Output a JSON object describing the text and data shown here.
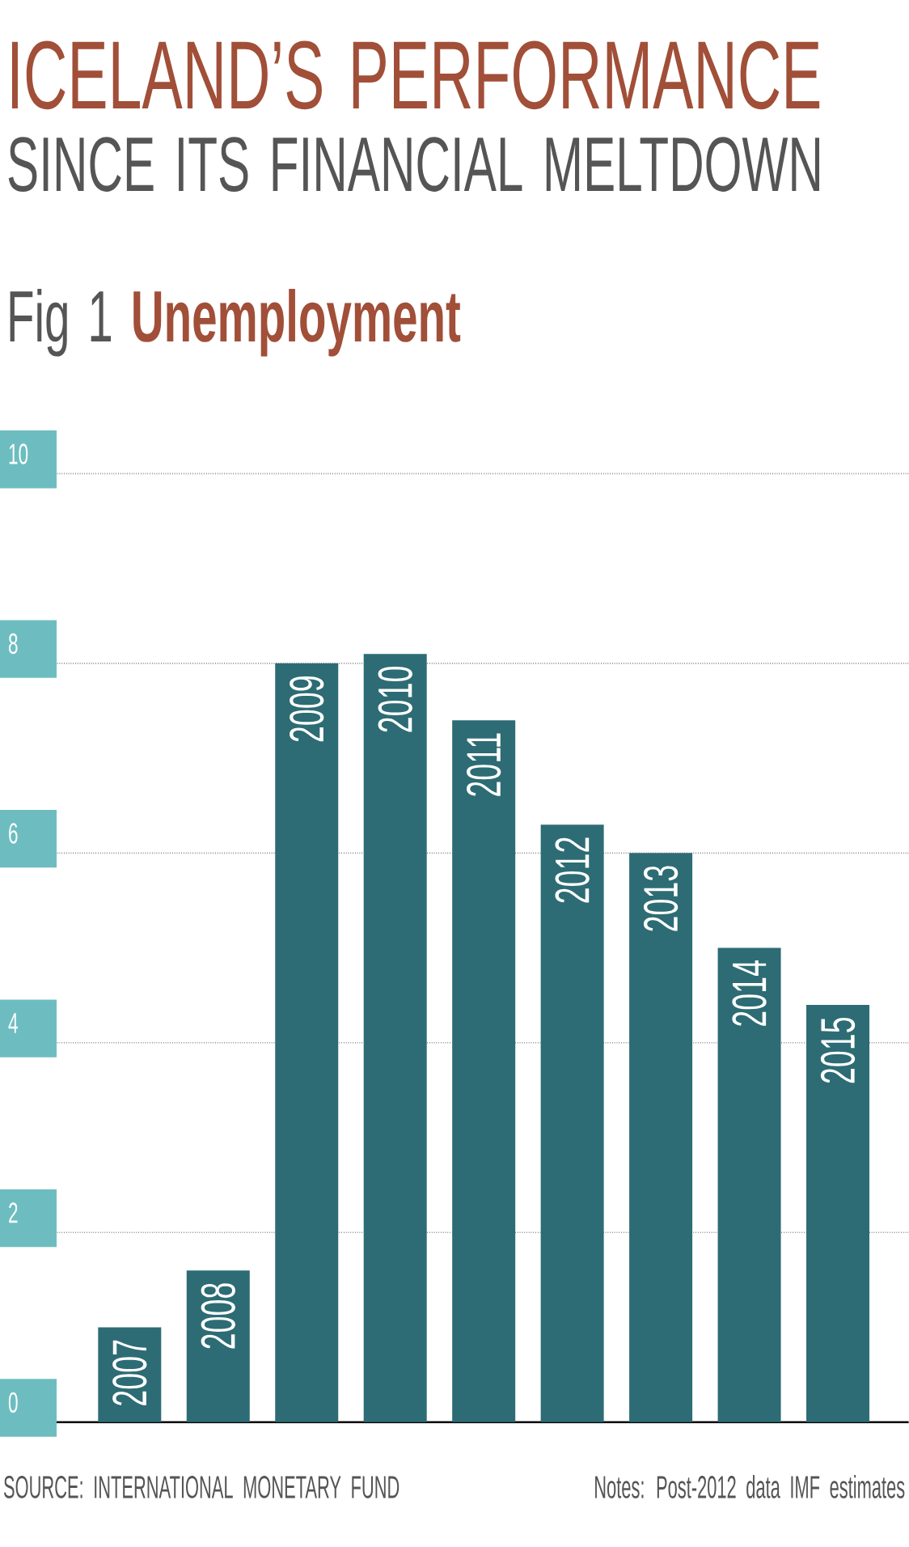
{
  "chart_data": {
    "type": "bar",
    "title": "ICELAND’S PERFORMANCE",
    "subtitle": "SINCE ITS FINANCIAL MELTDOWN",
    "annotations": [
      "Fig 1 **Unemployment**",
      "SOURCE: INTERNATIONAL MONETARY FUND",
      "Notes: Post-2012 data IMF estimates"
    ],
    "categories": [
      "2007",
      "2008",
      "2009",
      "2010",
      "2011",
      "2012",
      "2013",
      "2014",
      "2015"
    ],
    "values": [
      1.0,
      1.6,
      8.0,
      8.1,
      7.4,
      6.3,
      6.0,
      5.0,
      4.4
    ],
    "color": "#2d6c74",
    "ylim": [
      0,
      10
    ],
    "yticks": [
      0,
      2,
      4,
      6,
      8,
      10
    ],
    "grid": "y"
  }
}
